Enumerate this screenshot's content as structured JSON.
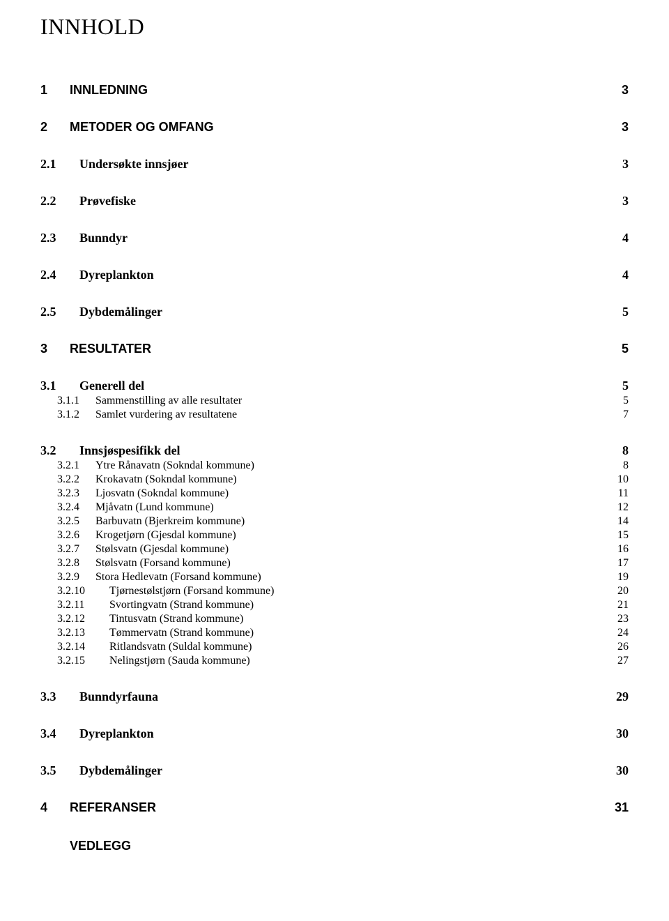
{
  "doc_title": "INNHOLD",
  "toc": [
    {
      "level": 1,
      "num": "1",
      "title": "INNLEDNING",
      "page": "3"
    },
    {
      "level": 1,
      "num": "2",
      "title": "METODER OG OMFANG",
      "page": "3"
    },
    {
      "level": 2,
      "num": "2.1",
      "title": "Undersøkte innsjøer",
      "page": "3"
    },
    {
      "level": 2,
      "num": "2.2",
      "title": "Prøvefiske",
      "page": "3"
    },
    {
      "level": 2,
      "num": "2.3",
      "title": "Bunndyr",
      "page": "4"
    },
    {
      "level": 2,
      "num": "2.4",
      "title": "Dyreplankton",
      "page": "4"
    },
    {
      "level": 2,
      "num": "2.5",
      "title": "Dybdemålinger",
      "page": "5"
    },
    {
      "level": 1,
      "num": "3",
      "title": "RESULTATER",
      "page": "5"
    },
    {
      "level": 2,
      "num": "3.1",
      "title": "Generell del",
      "page": "5"
    },
    {
      "level": 3,
      "num": "3.1.1",
      "title": "Sammenstilling av alle resultater",
      "page": "5"
    },
    {
      "level": 3,
      "num": "3.1.2",
      "title": "Samlet vurdering av resultatene",
      "page": "7"
    },
    {
      "level": 2,
      "num": "3.2",
      "title": "Innsjøspesifikk del",
      "page": "8"
    },
    {
      "level": 3,
      "num": "3.2.1",
      "title": "Ytre Rånavatn (Sokndal kommune)",
      "page": "8"
    },
    {
      "level": 3,
      "num": "3.2.2",
      "title": "Krokavatn (Sokndal kommune)",
      "page": "10"
    },
    {
      "level": 3,
      "num": "3.2.3",
      "title": "Ljosvatn (Sokndal kommune)",
      "page": "11"
    },
    {
      "level": 3,
      "num": "3.2.4",
      "title": "Mjåvatn (Lund kommune)",
      "page": "12"
    },
    {
      "level": 3,
      "num": "3.2.5",
      "title": "Barbuvatn (Bjerkreim kommune)",
      "page": "14"
    },
    {
      "level": 3,
      "num": "3.2.6",
      "title": "Krogetjørn (Gjesdal kommune)",
      "page": "15"
    },
    {
      "level": 3,
      "num": "3.2.7",
      "title": "Stølsvatn (Gjesdal kommune)",
      "page": "16"
    },
    {
      "level": 3,
      "num": "3.2.8",
      "title": "Stølsvatn (Forsand kommune)",
      "page": "17"
    },
    {
      "level": 3,
      "num": "3.2.9",
      "title": "Stora Hedlevatn (Forsand kommune)",
      "page": "19"
    },
    {
      "level": 3,
      "num": "3.2.10",
      "title": "Tjørnestølstjørn (Forsand kommune)",
      "page": "20",
      "wide": true
    },
    {
      "level": 3,
      "num": "3.2.11",
      "title": "Svortingvatn (Strand kommune)",
      "page": "21",
      "wide": true
    },
    {
      "level": 3,
      "num": "3.2.12",
      "title": "Tintusvatn (Strand kommune)",
      "page": "23",
      "wide": true
    },
    {
      "level": 3,
      "num": "3.2.13",
      "title": "Tømmervatn (Strand kommune)",
      "page": "24",
      "wide": true
    },
    {
      "level": 3,
      "num": "3.2.14",
      "title": "Ritlandsvatn (Suldal kommune)",
      "page": "26",
      "wide": true
    },
    {
      "level": 3,
      "num": "3.2.15",
      "title": "Nelingstjørn (Sauda kommune)",
      "page": "27",
      "wide": true
    },
    {
      "level": 2,
      "num": "3.3",
      "title": "Bunndyrfauna",
      "page": "29"
    },
    {
      "level": 2,
      "num": "3.4",
      "title": "Dyreplankton",
      "page": "30"
    },
    {
      "level": 2,
      "num": "3.5",
      "title": "Dybdemålinger",
      "page": "30"
    },
    {
      "level": 1,
      "num": "4",
      "title": "REFERANSER",
      "page": "31"
    }
  ],
  "vedlegg_label": "VEDLEGG"
}
